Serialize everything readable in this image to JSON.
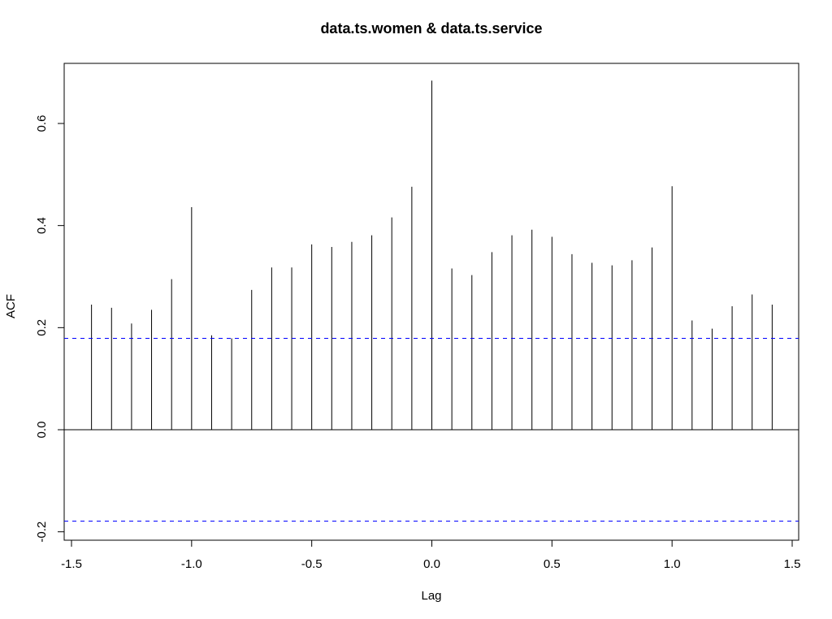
{
  "chart_data": {
    "type": "bar",
    "subtype": "acf-spikes",
    "title": "data.ts.women & data.ts.service",
    "xlabel": "Lag",
    "ylabel": "ACF",
    "xlim": [
      -1.5,
      1.5
    ],
    "ylim": [
      -0.2,
      0.7
    ],
    "xticks": [
      -1.5,
      -1.0,
      -0.5,
      0.0,
      0.5,
      1.0,
      1.5
    ],
    "xtick_labels": [
      "-1.5",
      "-1.0",
      "-0.5",
      "0.0",
      "0.5",
      "1.0",
      "1.5"
    ],
    "yticks": [
      -0.2,
      0.0,
      0.2,
      0.4,
      0.6
    ],
    "ytick_labels": [
      "-0.2",
      "0.0",
      "0.2",
      "0.4",
      "0.6"
    ],
    "grid": false,
    "zero_line": 0.0,
    "confidence_bounds": [
      0.179,
      -0.179
    ],
    "colors": {
      "spikes": "#000000",
      "confidence": "#0000ff",
      "axes": "#000000"
    },
    "x": [
      -1.4167,
      -1.3333,
      -1.25,
      -1.1667,
      -1.0833,
      -1.0,
      -0.9167,
      -0.8333,
      -0.75,
      -0.6667,
      -0.5833,
      -0.5,
      -0.4167,
      -0.3333,
      -0.25,
      -0.1667,
      -0.0833,
      0.0,
      0.0833,
      0.1667,
      0.25,
      0.3333,
      0.4167,
      0.5,
      0.5833,
      0.6667,
      0.75,
      0.8333,
      0.9167,
      1.0,
      1.0833,
      1.1667,
      1.25,
      1.3333,
      1.4167
    ],
    "values": [
      0.245,
      0.239,
      0.208,
      0.235,
      0.295,
      0.436,
      0.185,
      0.179,
      0.274,
      0.318,
      0.318,
      0.363,
      0.358,
      0.368,
      0.381,
      0.416,
      0.476,
      0.684,
      0.316,
      0.303,
      0.348,
      0.381,
      0.392,
      0.378,
      0.344,
      0.327,
      0.322,
      0.332,
      0.357,
      0.477,
      0.214,
      0.198,
      0.242,
      0.265,
      0.245
    ]
  }
}
